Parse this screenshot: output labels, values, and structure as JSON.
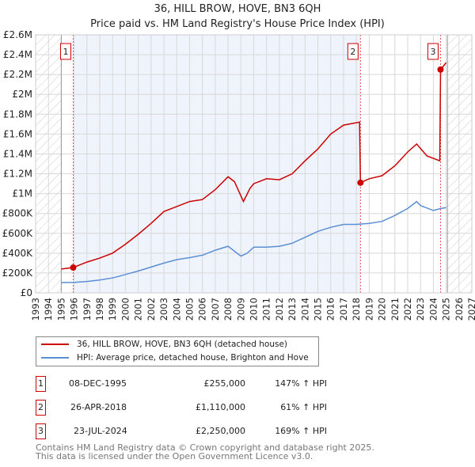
{
  "chart_data": {
    "type": "line",
    "title": "36, HILL BROW, HOVE, BN3 6QH",
    "subtitle": "Price paid vs. HM Land Registry's House Price Index (HPI)",
    "xlim": [
      1993,
      2027
    ],
    "ylim": [
      0,
      2600000
    ],
    "x_ticks": [
      "1993",
      "1994",
      "1995",
      "1996",
      "1997",
      "1998",
      "1999",
      "2000",
      "2001",
      "2002",
      "2003",
      "2004",
      "2005",
      "2006",
      "2007",
      "2008",
      "2009",
      "2010",
      "2011",
      "2012",
      "2013",
      "2014",
      "2015",
      "2016",
      "2017",
      "2018",
      "2019",
      "2020",
      "2021",
      "2022",
      "2023",
      "2024",
      "2025",
      "2026",
      "2027"
    ],
    "y_ticks": [
      {
        "v": 0,
        "label": "£0"
      },
      {
        "v": 200000,
        "label": "£200K"
      },
      {
        "v": 400000,
        "label": "£400K"
      },
      {
        "v": 600000,
        "label": "£600K"
      },
      {
        "v": 800000,
        "label": "£800K"
      },
      {
        "v": 1000000,
        "label": "£1M"
      },
      {
        "v": 1200000,
        "label": "£1.2M"
      },
      {
        "v": 1400000,
        "label": "£1.4M"
      },
      {
        "v": 1600000,
        "label": "£1.6M"
      },
      {
        "v": 1800000,
        "label": "£1.8M"
      },
      {
        "v": 2000000,
        "label": "£2M"
      },
      {
        "v": 2200000,
        "label": "£2.2M"
      },
      {
        "v": 2400000,
        "label": "£2.4M"
      },
      {
        "v": 2600000,
        "label": "£2.6M"
      }
    ],
    "hatch_before": 1995,
    "hatch_after": 2025.1,
    "shaded_range": [
      1995.93,
      2018.32
    ],
    "series": [
      {
        "name": "36, HILL BROW, HOVE, BN3 6QH (detached house)",
        "color": "#cc0000",
        "x": [
          1995,
          1995.93,
          1997,
          1998,
          1999,
          2000,
          2001,
          2002,
          2003,
          2004,
          2005,
          2006,
          2007,
          2008,
          2008.5,
          2009.2,
          2009.7,
          2010,
          2011,
          2012,
          2013,
          2014,
          2015,
          2016,
          2017,
          2018.25,
          2018.32,
          2019,
          2020,
          2021,
          2022,
          2022.7,
          2023.5,
          2024.5,
          2024.56,
          2025
        ],
        "y": [
          240000,
          255000,
          310000,
          350000,
          400000,
          490000,
          590000,
          700000,
          820000,
          870000,
          920000,
          940000,
          1040000,
          1170000,
          1120000,
          920000,
          1050000,
          1100000,
          1150000,
          1140000,
          1200000,
          1330000,
          1450000,
          1600000,
          1690000,
          1720000,
          1110000,
          1150000,
          1180000,
          1280000,
          1420000,
          1500000,
          1380000,
          1330000,
          2250000,
          2320000
        ]
      },
      {
        "name": "HPI: Average price, detached house, Brighton and Hove",
        "color": "#5b8fd4",
        "x": [
          1995,
          1996,
          1997,
          1998,
          1999,
          2000,
          2001,
          2002,
          2003,
          2004,
          2005,
          2006,
          2007,
          2008,
          2009,
          2009.5,
          2010,
          2011,
          2012,
          2013,
          2014,
          2015,
          2016,
          2017,
          2018,
          2019,
          2020,
          2021,
          2022,
          2022.7,
          2023,
          2024,
          2024.6,
          2025
        ],
        "y": [
          104000,
          105000,
          115000,
          130000,
          150000,
          185000,
          220000,
          260000,
          300000,
          335000,
          355000,
          380000,
          430000,
          470000,
          370000,
          400000,
          460000,
          460000,
          470000,
          500000,
          560000,
          620000,
          660000,
          690000,
          690000,
          700000,
          720000,
          780000,
          850000,
          920000,
          880000,
          830000,
          850000,
          860000
        ]
      }
    ],
    "sales": [
      {
        "n": "1",
        "x": 1995.93,
        "y": 255000,
        "date": "08-DEC-1995",
        "price": "£255,000",
        "hpi": "147% ↑ HPI"
      },
      {
        "n": "2",
        "x": 2018.32,
        "y": 1110000,
        "date": "26-APR-2018",
        "price": "£1,110,000",
        "hpi": "61% ↑ HPI"
      },
      {
        "n": "3",
        "x": 2024.56,
        "y": 2250000,
        "date": "23-JUL-2024",
        "price": "£2,250,000",
        "hpi": "169% ↑ HPI"
      }
    ],
    "legend_position": "below"
  },
  "footer": {
    "line1": "Contains HM Land Registry data © Crown copyright and database right 2025.",
    "line2": "This data is licensed under the Open Government Licence v3.0."
  }
}
